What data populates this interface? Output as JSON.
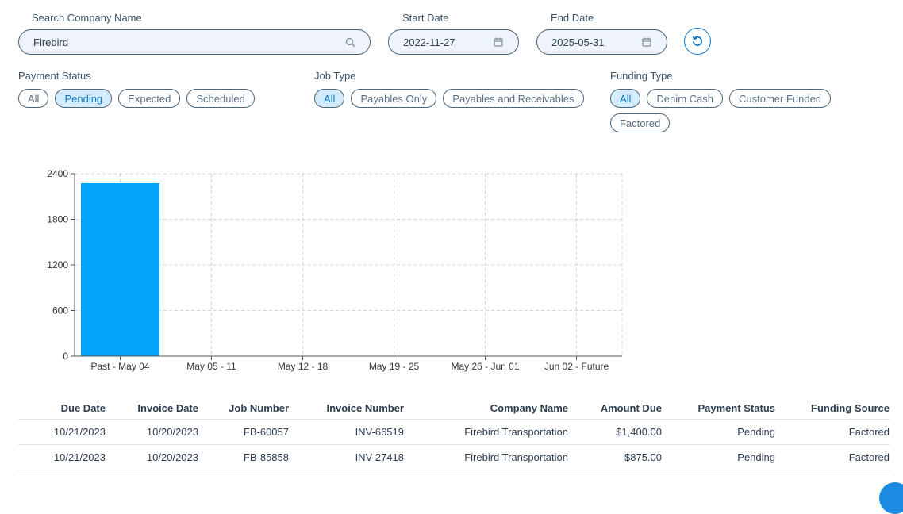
{
  "filters": {
    "search": {
      "label": "Search Company Name",
      "value": "Firebird",
      "icon": "search-icon"
    },
    "start_date": {
      "label": "Start Date",
      "value": "2022-11-27",
      "icon": "calendar-icon"
    },
    "end_date": {
      "label": "End Date",
      "value": "2025-05-31",
      "icon": "calendar-icon"
    },
    "reset_icon": "reset-icon",
    "payment_status": {
      "label": "Payment Status",
      "options": [
        "All",
        "Pending",
        "Expected",
        "Scheduled"
      ],
      "selected": "Pending"
    },
    "job_type": {
      "label": "Job Type",
      "options": [
        "All",
        "Payables Only",
        "Payables and Receivables"
      ],
      "selected": "All"
    },
    "funding_type": {
      "label": "Funding Type",
      "options": [
        "All",
        "Denim Cash",
        "Customer Funded",
        "Factored"
      ],
      "selected": "All"
    }
  },
  "chart_data": {
    "type": "bar",
    "categories": [
      "Past - May 04",
      "May 05 - 11",
      "May 12 - 18",
      "May 19 - 25",
      "May 26 - Jun 01",
      "Jun 02 - Future"
    ],
    "values": [
      2275,
      0,
      0,
      0,
      0,
      0
    ],
    "ylim": [
      0,
      2400
    ],
    "yticks": [
      0,
      600,
      1200,
      1800,
      2400
    ],
    "grid": true,
    "bar_color": "#03a2fb"
  },
  "table": {
    "columns": [
      "Due Date",
      "Invoice Date",
      "Job Number",
      "Invoice Number",
      "Company Name",
      "Amount Due",
      "Payment Status",
      "Funding Source"
    ],
    "rows": [
      [
        "10/21/2023",
        "10/20/2023",
        "FB-60057",
        "INV-66519",
        "Firebird Transportation",
        "$1,400.00",
        "Pending",
        "Factored"
      ],
      [
        "10/21/2023",
        "10/20/2023",
        "FB-85858",
        "INV-27418",
        "Firebird Transportation",
        "$875.00",
        "Pending",
        "Factored"
      ]
    ]
  },
  "colors": {
    "accent": "#0d79c9",
    "chip_active_bg": "#d3ebfb",
    "field_bg": "#eef4f9"
  }
}
